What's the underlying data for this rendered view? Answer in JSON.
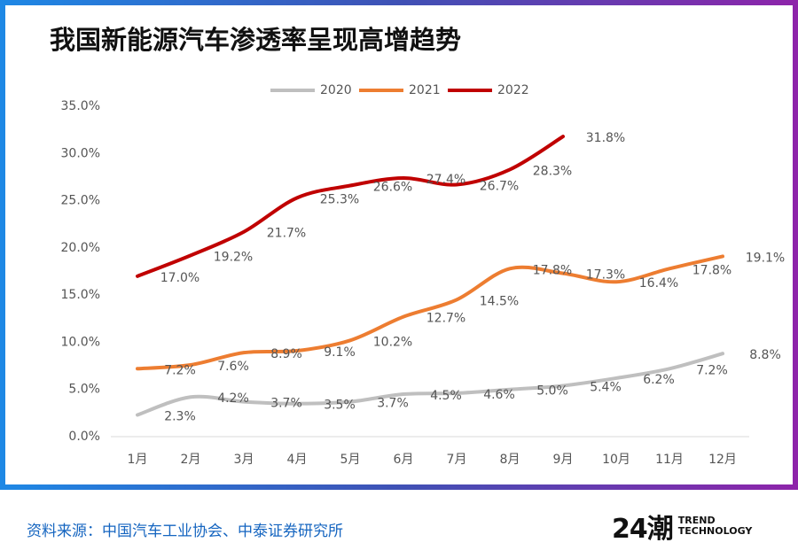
{
  "title": "我国新能源汽车渗透率呈现高增趋势",
  "source": "资料来源：中国汽车工业协会、中泰证券研究所",
  "logo": {
    "main": "24潮",
    "sub": "TREND TECHNOLOGY"
  },
  "chart_data": {
    "type": "line",
    "categories": [
      "1月",
      "2月",
      "3月",
      "4月",
      "5月",
      "6月",
      "7月",
      "8月",
      "9月",
      "10月",
      "11月",
      "12月"
    ],
    "series": [
      {
        "name": "2020",
        "color": "#bfbfbf",
        "values": [
          2.3,
          4.2,
          3.7,
          3.5,
          3.7,
          4.5,
          4.6,
          5.0,
          5.4,
          6.2,
          7.2,
          8.8
        ],
        "value_labels": [
          "2.3%",
          "4.2%",
          "3.7%",
          "3.5%",
          "3.7%",
          "4.5%",
          "4.6%",
          "5.0%",
          "5.4%",
          "6.2%",
          "7.2%",
          "8.8%"
        ]
      },
      {
        "name": "2021",
        "color": "#ed7d31",
        "values": [
          7.2,
          7.6,
          8.9,
          9.1,
          10.2,
          12.7,
          14.5,
          17.8,
          17.3,
          16.4,
          17.8,
          19.1
        ],
        "value_labels": [
          "7.2%",
          "7.6%",
          "8.9%",
          "9.1%",
          "10.2%",
          "12.7%",
          "14.5%",
          "17.8%",
          "17.3%",
          "16.4%",
          "17.8%",
          "19.1%"
        ]
      },
      {
        "name": "2022",
        "color": "#c00000",
        "values": [
          17.0,
          19.2,
          21.7,
          25.3,
          26.6,
          27.4,
          26.7,
          28.3,
          31.8,
          null,
          null,
          null
        ],
        "value_labels": [
          "17.0%",
          "19.2%",
          "21.7%",
          "25.3%",
          "26.6%",
          "27.4%",
          "26.7%",
          "28.3%",
          "31.8%",
          null,
          null,
          null
        ]
      }
    ],
    "ylim": [
      0,
      35
    ],
    "yticks": [
      {
        "value": 0,
        "label": "0.0%"
      },
      {
        "value": 5,
        "label": "5.0%"
      },
      {
        "value": 10,
        "label": "10.0%"
      },
      {
        "value": 15,
        "label": "15.0%"
      },
      {
        "value": 20,
        "label": "20.0%"
      },
      {
        "value": 25,
        "label": "25.0%"
      },
      {
        "value": 30,
        "label": "30.0%"
      },
      {
        "value": 35,
        "label": "35.0%"
      }
    ],
    "grid": false,
    "legend": "top"
  }
}
